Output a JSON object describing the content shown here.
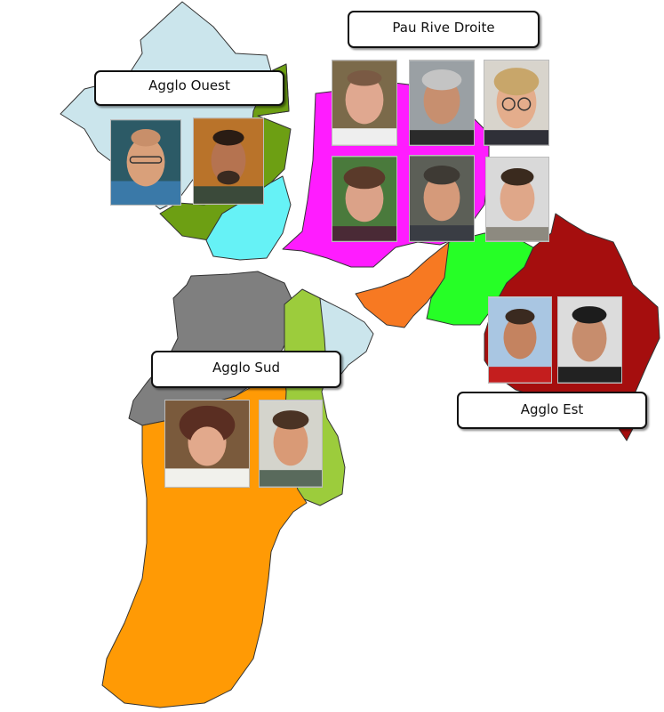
{
  "zones": [
    {
      "id": "agglo-ouest",
      "label": "Agglo Ouest",
      "photo_count": 2
    },
    {
      "id": "pau-rive-droite",
      "label": "Pau Rive Droite",
      "photo_count": 6
    },
    {
      "id": "agglo-sud",
      "label": "Agglo Sud",
      "photo_count": 2
    },
    {
      "id": "agglo-est",
      "label": "Agglo Est",
      "photo_count": 2
    }
  ],
  "colors": {
    "light_blue": "#cbe5ec",
    "cyan": "#66f2f6",
    "olive_green": "#6d9f13",
    "lime_green": "#9ccc3c",
    "magenta": "#ff1cff",
    "bright_green": "#26ff26",
    "orange_east": "#f77922",
    "dark_red": "#a50e0e",
    "grey": "#7f7f7f",
    "orange_south": "#ff9a05"
  }
}
